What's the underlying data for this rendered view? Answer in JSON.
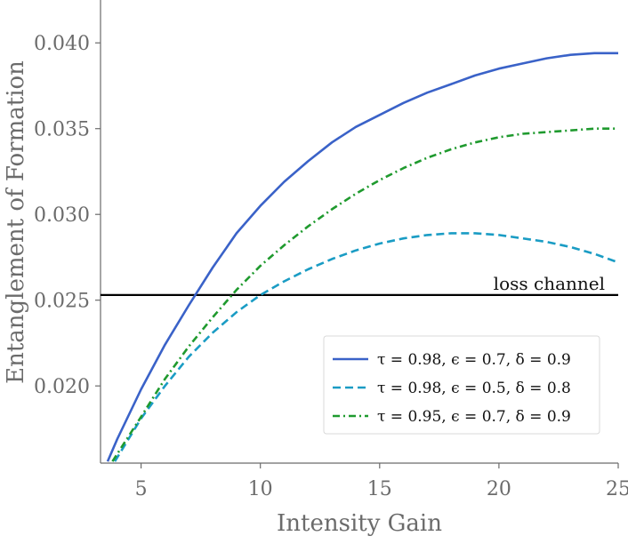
{
  "chart_data": {
    "type": "line",
    "xlabel": "Intensity Gain",
    "ylabel": "Entanglement of Formation",
    "xlim": [
      3.3,
      25
    ],
    "ylim": [
      0.0155,
      0.0425
    ],
    "xticks": [
      5,
      10,
      15,
      20,
      25
    ],
    "xtick_labels": [
      "5",
      "10",
      "15",
      "20",
      "25"
    ],
    "yticks": [
      0.02,
      0.025,
      0.03,
      0.035,
      0.04
    ],
    "ytick_labels": [
      "0.020",
      "0.025",
      "0.030",
      "0.035",
      "0.040"
    ],
    "grid": false,
    "legend_position": "lower-right",
    "series": [
      {
        "name": "τ = 0.98, ϵ = 0.7, δ = 0.9",
        "color": "#3a62c8",
        "style": "solid",
        "x": [
          3.6,
          4.0,
          5.0,
          6.0,
          7.0,
          8.0,
          9.0,
          10.0,
          11.0,
          12.0,
          13.0,
          14.0,
          15.0,
          16.0,
          17.0,
          18.0,
          19.0,
          20.0,
          21.0,
          22.0,
          23.0,
          24.0,
          25.0
        ],
        "y": [
          0.0156,
          0.0169,
          0.0198,
          0.0224,
          0.0247,
          0.0269,
          0.0289,
          0.0305,
          0.0319,
          0.0331,
          0.0342,
          0.0351,
          0.0358,
          0.0365,
          0.0371,
          0.0376,
          0.0381,
          0.0385,
          0.0388,
          0.0391,
          0.0393,
          0.0394,
          0.0394
        ]
      },
      {
        "name": "τ = 0.98, ϵ = 0.5, δ = 0.8",
        "color": "#1a9cc4",
        "style": "dashed",
        "x": [
          3.9,
          5.0,
          6.0,
          7.0,
          8.0,
          9.0,
          10.0,
          11.0,
          12.0,
          13.0,
          14.0,
          15.0,
          16.0,
          17.0,
          18.0,
          19.0,
          20.0,
          21.0,
          22.0,
          23.0,
          24.0,
          25.0
        ],
        "y": [
          0.0156,
          0.0181,
          0.02,
          0.0217,
          0.0231,
          0.0243,
          0.0253,
          0.0261,
          0.0268,
          0.0274,
          0.0279,
          0.0283,
          0.0286,
          0.0288,
          0.0289,
          0.0289,
          0.0288,
          0.0286,
          0.0284,
          0.0281,
          0.0277,
          0.0272
        ]
      },
      {
        "name": "τ = 0.95, ϵ = 0.7, δ = 0.9",
        "color": "#1f9a2e",
        "style": "dash-dot",
        "x": [
          3.8,
          5.0,
          6.0,
          7.0,
          8.0,
          9.0,
          10.0,
          11.0,
          12.0,
          13.0,
          14.0,
          15.0,
          16.0,
          17.0,
          18.0,
          19.0,
          20.0,
          21.0,
          22.0,
          23.0,
          24.0,
          25.0
        ],
        "y": [
          0.0156,
          0.0182,
          0.0204,
          0.0223,
          0.024,
          0.0256,
          0.027,
          0.0282,
          0.0293,
          0.0303,
          0.0312,
          0.032,
          0.0327,
          0.0333,
          0.0338,
          0.0342,
          0.0345,
          0.0347,
          0.0348,
          0.0349,
          0.035,
          0.035
        ]
      }
    ],
    "hlines": [
      {
        "y": 0.0253,
        "label": "loss channel",
        "color": "#000000"
      }
    ]
  }
}
